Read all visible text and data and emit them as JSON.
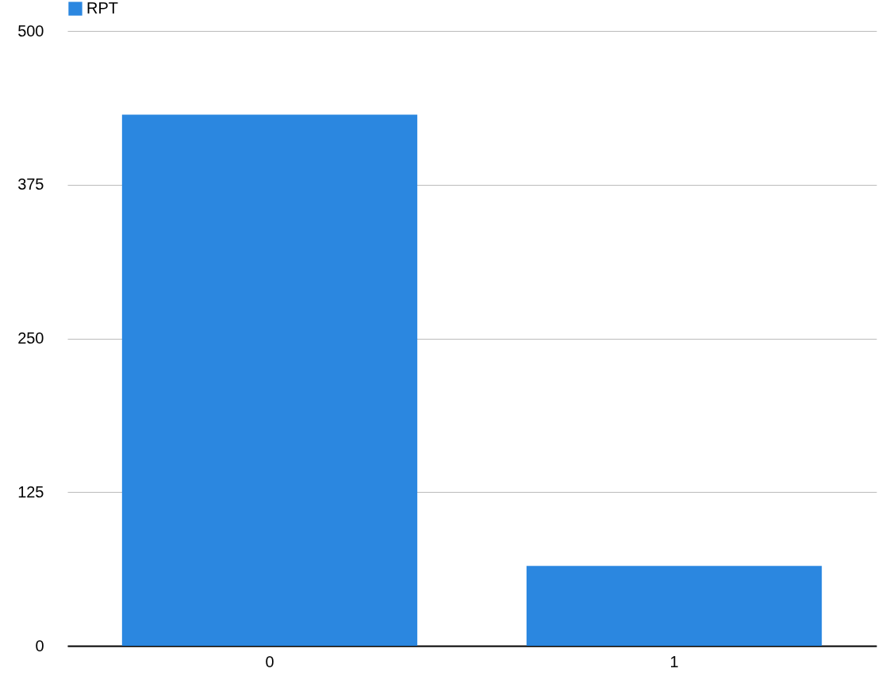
{
  "chart_data": {
    "type": "bar",
    "categories": [
      "0",
      "1"
    ],
    "series": [
      {
        "name": "RPT",
        "color": "#2b87e0",
        "values": [
          432,
          65
        ]
      }
    ],
    "ylim": [
      0,
      500
    ],
    "yticks": [
      0,
      125,
      250,
      375,
      500
    ],
    "grid": "y",
    "legend": "top"
  }
}
